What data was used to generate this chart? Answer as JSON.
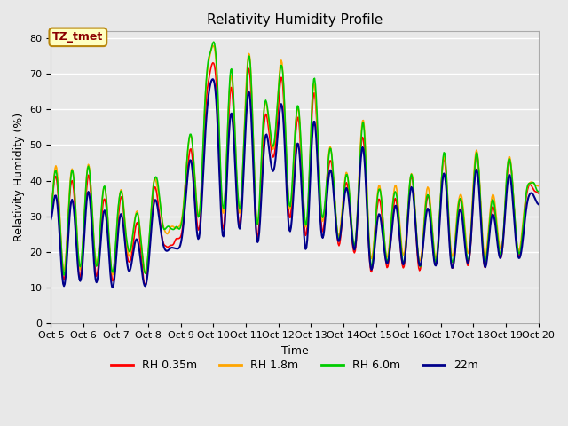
{
  "title": "Relativity Humidity Profile",
  "xlabel": "Time",
  "ylabel": "Relativity Humidity (%)",
  "ylim": [
    0,
    82
  ],
  "yticks": [
    0,
    10,
    20,
    30,
    40,
    50,
    60,
    70,
    80
  ],
  "annotation_text": "TZ_tmet",
  "annotation_color": "#8B0000",
  "annotation_bg": "#FFFFC0",
  "annotation_border": "#B8860B",
  "colors": {
    "RH 0.35m": "#FF0000",
    "RH 1.8m": "#FFA500",
    "RH 6.0m": "#00CC00",
    "22m": "#00008B"
  },
  "bg_color": "#E8E8E8",
  "plot_bg": "#E8E8E8",
  "grid_color": "#FFFFFF",
  "x_start": 5.0,
  "x_end": 20.0,
  "xtick_positions": [
    5,
    6,
    7,
    8,
    9,
    10,
    11,
    12,
    13,
    14,
    15,
    16,
    17,
    18,
    19,
    20
  ],
  "xtick_labels": [
    "Oct 5",
    "Oct 6",
    "Oct 7",
    "Oct 8",
    "Oct 9",
    "Oct 10",
    "Oct 11",
    "Oct 12",
    "Oct 13",
    "Oct 14",
    "Oct 15",
    "Oct 16",
    "Oct 17",
    "Oct 18",
    "Oct 19",
    "Oct 20"
  ]
}
